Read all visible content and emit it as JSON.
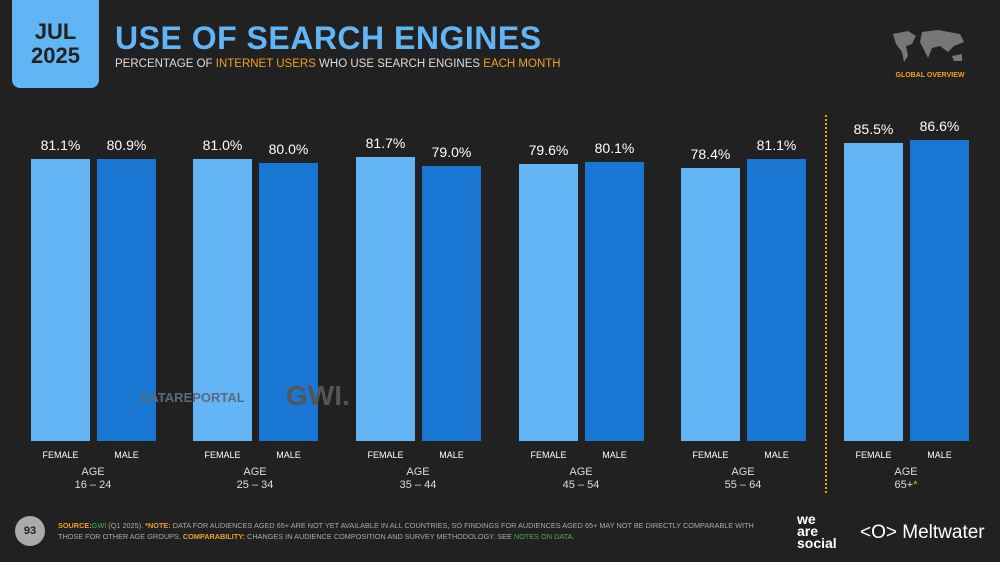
{
  "header": {
    "month": "JUL",
    "year": "2025",
    "title": "USE OF SEARCH ENGINES",
    "subtitle": [
      {
        "text": "PERCENTAGE OF ",
        "hl": false
      },
      {
        "text": "INTERNET USERS",
        "hl": true
      },
      {
        "text": " WHO USE SEARCH ENGINES ",
        "hl": false
      },
      {
        "text": "EACH MONTH",
        "hl": true
      }
    ],
    "map_label": "GLOBAL OVERVIEW"
  },
  "colors": {
    "female": "#64b5f6",
    "male": "#1976d2",
    "accent": "#f0a020"
  },
  "chart_data": {
    "type": "bar",
    "title": "USE OF SEARCH ENGINES",
    "ylim": [
      0,
      100
    ],
    "series_names": [
      "FEMALE",
      "MALE"
    ],
    "groups": [
      {
        "label": "AGE",
        "range": "16 – 24",
        "female": 81.1,
        "male": 80.9,
        "female_label": "81.1%",
        "male_label": "80.9%"
      },
      {
        "label": "AGE",
        "range": "25 – 34",
        "female": 81.0,
        "male": 80.0,
        "female_label": "81.0%",
        "male_label": "80.0%"
      },
      {
        "label": "AGE",
        "range": "35 – 44",
        "female": 81.7,
        "male": 79.0,
        "female_label": "81.7%",
        "male_label": "79.0%"
      },
      {
        "label": "AGE",
        "range": "45 – 54",
        "female": 79.6,
        "male": 80.1,
        "female_label": "79.6%",
        "male_label": "80.1%"
      },
      {
        "label": "AGE",
        "range": "55 – 64",
        "female": 78.4,
        "male": 81.1,
        "female_label": "78.4%",
        "male_label": "81.1%"
      },
      {
        "label": "AGE",
        "range": "65+",
        "star": "*",
        "female": 85.5,
        "male": 86.6,
        "female_label": "85.5%",
        "male_label": "86.6%"
      }
    ]
  },
  "watermark": {
    "datareportal": "DATAREPORTAL",
    "gwi": "GWI."
  },
  "footer": {
    "page": "93",
    "source_label": "SOURCE:",
    "source": "GWI",
    "source_rest": " (Q1 2025). ",
    "note_label": "*NOTE:",
    "note": " DATA FOR AUDIENCES AGED 65+ ARE NOT YET AVAILABLE IN ALL COUNTRIES, SO FINDINGS FOR AUDIENCES AGED 65+ MAY NOT BE DIRECTLY COMPARABLE WITH THOSE FOR OTHER AGE GROUPS. ",
    "comp_label": "COMPARABILITY:",
    "comp": " CHANGES IN AUDIENCE COMPOSITION AND SURVEY METHODOLOGY. SEE ",
    "link": "NOTES ON DATA",
    "end": "."
  },
  "logos": {
    "was": [
      "we",
      "are",
      "social"
    ],
    "meltwater": "Meltwater"
  }
}
